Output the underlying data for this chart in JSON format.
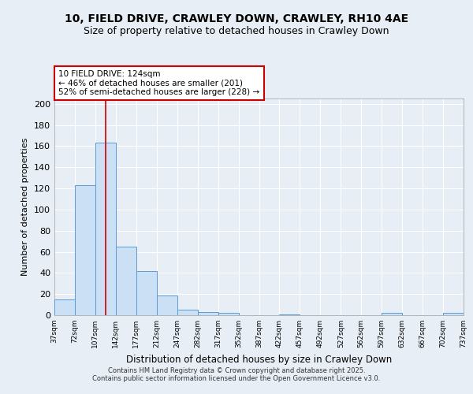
{
  "title_line1": "10, FIELD DRIVE, CRAWLEY DOWN, CRAWLEY, RH10 4AE",
  "title_line2": "Size of property relative to detached houses in Crawley Down",
  "xlabel": "Distribution of detached houses by size in Crawley Down",
  "ylabel": "Number of detached properties",
  "bar_edges": [
    37,
    72,
    107,
    142,
    177,
    212,
    247,
    282,
    317,
    352,
    387,
    422,
    457,
    492,
    527,
    562,
    597,
    632,
    667,
    702,
    737
  ],
  "bar_values": [
    15,
    123,
    163,
    65,
    42,
    19,
    5,
    3,
    2,
    0,
    0,
    1,
    0,
    0,
    0,
    0,
    2,
    0,
    0,
    2
  ],
  "bar_color": "#cce0f5",
  "bar_edge_color": "#5b9bd5",
  "ylim": [
    0,
    205
  ],
  "yticks": [
    0,
    20,
    40,
    60,
    80,
    100,
    120,
    140,
    160,
    180,
    200
  ],
  "red_line_x": 124,
  "annotation_line1": "10 FIELD DRIVE: 124sqm",
  "annotation_line2": "← 46% of detached houses are smaller (201)",
  "annotation_line3": "52% of semi-detached houses are larger (228) →",
  "annotation_box_color": "#ffffff",
  "annotation_box_edge": "#cc0000",
  "footer_text": "Contains HM Land Registry data © Crown copyright and database right 2025.\nContains public sector information licensed under the Open Government Licence v3.0.",
  "background_color": "#e8eef5",
  "plot_bg_color": "#e8eef5",
  "grid_color": "#ffffff",
  "title1_fontsize": 10,
  "title2_fontsize": 9
}
